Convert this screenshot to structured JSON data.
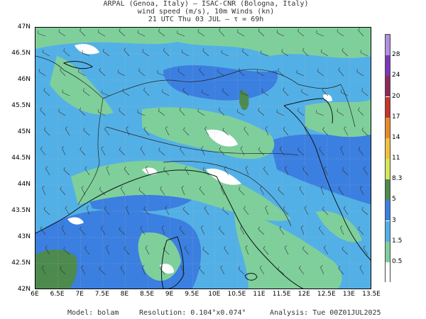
{
  "title": {
    "line1": "ARPAL (Genoa, Italy)  —  ISAC-CNR (Bologna, Italy)",
    "line2": "wind speed (m/s), 10m Winds (kn)",
    "line3": "21 UTC Thu 03 JUL  —  τ = 69h"
  },
  "axes": {
    "lat_labels": [
      "47N",
      "46.5N",
      "46N",
      "45.5N",
      "45N",
      "44.5N",
      "44N",
      "43.5N",
      "43N",
      "42.5N",
      "42N"
    ],
    "lon_labels": [
      "6E",
      "6.5E",
      "7E",
      "7.5E",
      "8E",
      "8.5E",
      "9E",
      "9.5E",
      "10E",
      "10.5E",
      "11E",
      "11.5E",
      "12E",
      "12.5E",
      "13E",
      "13.5E"
    ]
  },
  "colorbar": {
    "labels": [
      "0.5",
      "1.5",
      "3",
      "5",
      "8.3",
      "11",
      "14",
      "17",
      "20",
      "24",
      "28"
    ],
    "colors": [
      "#ffffff",
      "#7fcf9b",
      "#53b0e6",
      "#3b7fe0",
      "#4d8a4d",
      "#d8e45a",
      "#f0c040",
      "#e88a2c",
      "#c8342a",
      "#8e2a5a",
      "#7a38b8",
      "#b08ee0"
    ]
  },
  "footer": {
    "model": "Model: bolam",
    "resolution": "Resolution: 0.104°x0.074°",
    "analysis": "Analysis: Tue 00Z01JUL2025"
  }
}
